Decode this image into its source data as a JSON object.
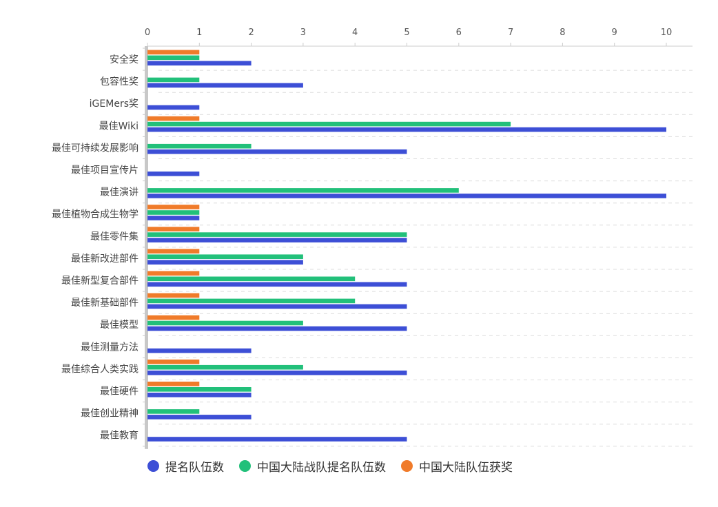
{
  "chart_data": {
    "type": "bar",
    "orientation": "horizontal",
    "categories": [
      "安全奖",
      "包容性奖",
      "iGEMers奖",
      "最佳Wiki",
      "最佳可持续发展影响",
      "最佳项目宣传片",
      "最佳演讲",
      "最佳植物合成生物学",
      "最佳零件集",
      "最佳新改进部件",
      "最佳新型复合部件",
      "最佳新基础部件",
      "最佳模型",
      "最佳测量方法",
      "最佳综合人类实践",
      "最佳硬件",
      "最佳创业精神",
      "最佳教育"
    ],
    "series": [
      {
        "name": "提名队伍数",
        "color": "#3d4fd6",
        "values": [
          2,
          3,
          1,
          10,
          5,
          1,
          10,
          1,
          5,
          3,
          5,
          5,
          5,
          2,
          5,
          2,
          2,
          5
        ]
      },
      {
        "name": "中国大陆战队提名队伍数",
        "color": "#22c07a",
        "values": [
          1,
          1,
          0,
          7,
          2,
          0,
          6,
          1,
          5,
          3,
          4,
          4,
          3,
          0,
          3,
          2,
          1,
          0
        ]
      },
      {
        "name": "中国大陆队伍获奖",
        "color": "#f07b2a",
        "values": [
          1,
          0,
          0,
          1,
          0,
          0,
          0,
          1,
          1,
          1,
          1,
          1,
          1,
          0,
          1,
          1,
          0,
          0
        ]
      }
    ],
    "x_ticks": [
      "0",
      "1",
      "2",
      "3",
      "4",
      "5",
      "6",
      "7",
      "8",
      "9",
      "10"
    ],
    "xlim": [
      0,
      10.5
    ],
    "axis_position": "top",
    "grid": "dashed horizontal",
    "legend_position": "bottom"
  }
}
